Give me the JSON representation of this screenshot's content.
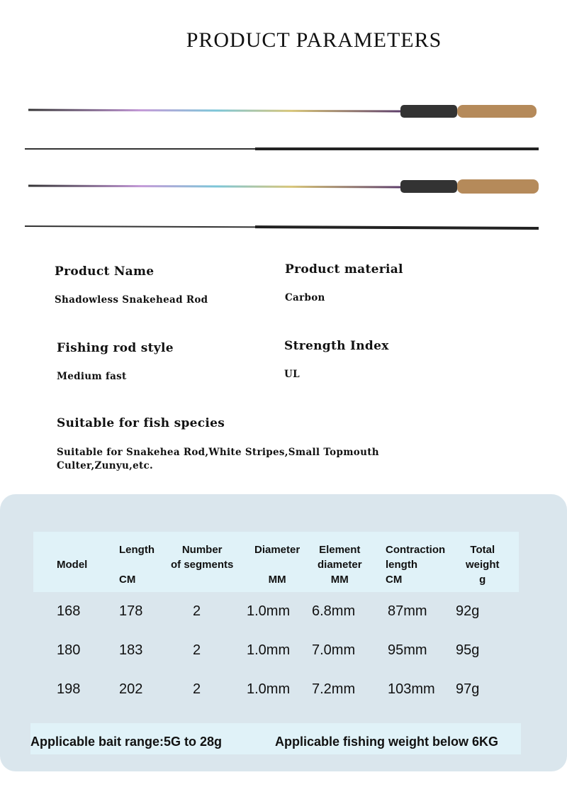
{
  "title": "PRODUCT PARAMETERS",
  "params": [
    {
      "label": "Product Name",
      "value": "Shadowless Snakehead Rod"
    },
    {
      "label": "Product material",
      "value": "Carbon"
    },
    {
      "label": "Fishing rod style",
      "value": "Medium fast"
    },
    {
      "label": "Strength Index",
      "value": "UL"
    },
    {
      "label": "Suitable for fish species",
      "value": "Suitable for Snakehea Rod,White Stripes,Small Topmouth Culter,Zunyu,etc."
    }
  ],
  "table": {
    "headers": [
      "Model",
      "Length\n\nCM",
      "Number\nof segments",
      "Diameter\n\nMM",
      "Element\ndiameter\nMM",
      "Contraction\nlength\nCM",
      "Total\nweight\ng"
    ],
    "rows": [
      [
        "168",
        "178",
        "2",
        "1.0mm",
        "6.8mm",
        "87mm",
        "92g"
      ],
      [
        "180",
        "183",
        "2",
        "1.0mm",
        "7.0mm",
        "95mm",
        "95g"
      ],
      [
        "198",
        "202",
        "2",
        "1.0mm",
        "7.2mm",
        "103mm",
        "97g"
      ]
    ]
  },
  "footer": {
    "bait": "Applicable bait range:5G to 28g",
    "weight": "Applicable fishing weight below 6KG"
  }
}
